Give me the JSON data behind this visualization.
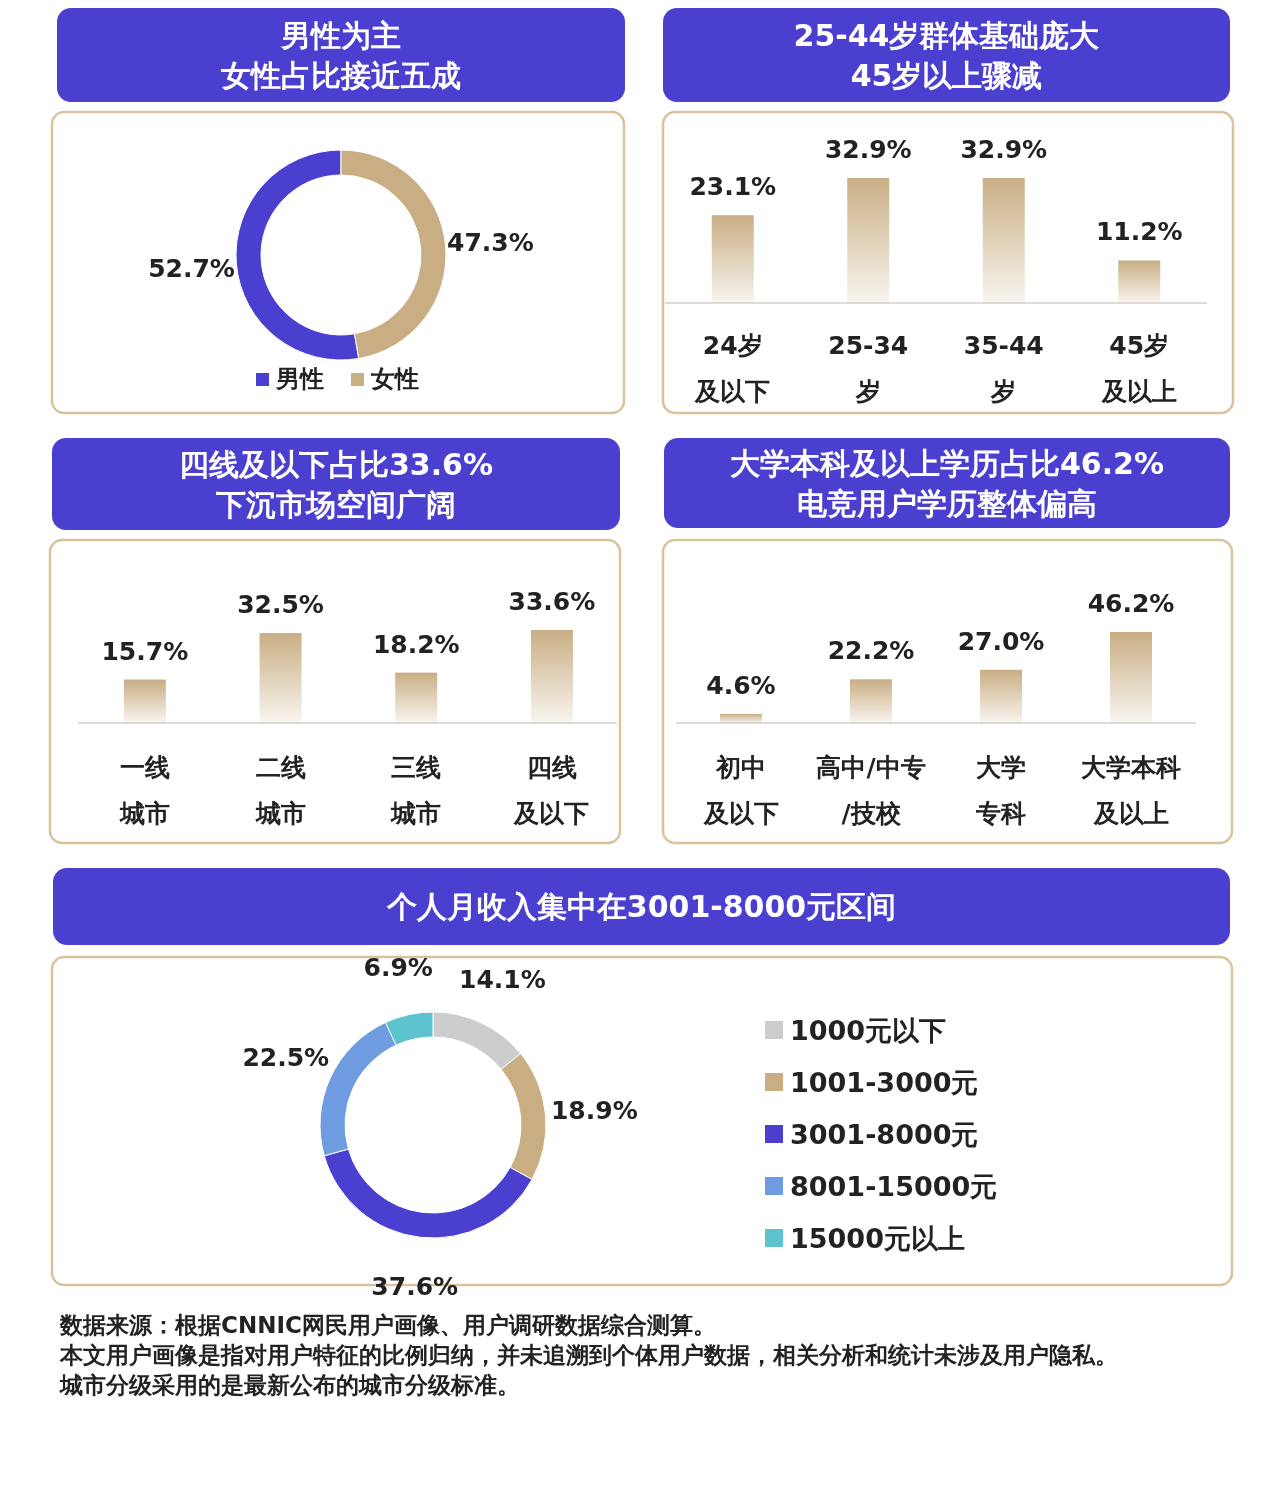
{
  "chart_data": [
    {
      "type": "donut",
      "title": "男性为主",
      "subtitle": "女性占比接近五成",
      "categories": [
        "男性",
        "女性"
      ],
      "values": [
        52.7,
        47.3
      ],
      "colors": [
        "#4b3fd0",
        "#c9ae84"
      ],
      "value_labels": [
        "52.7%",
        "47.3%"
      ],
      "legend": "bottom"
    },
    {
      "type": "bar",
      "title": "25-44岁群体基础庞大",
      "subtitle": "45岁以上骤减",
      "categories": [
        "24岁及以下",
        "25-34岁",
        "35-44岁",
        "45岁及以上"
      ],
      "values": [
        23.1,
        32.9,
        32.9,
        11.2
      ],
      "color": "#c9ae84",
      "value_labels": [
        "23.1%",
        "32.9%",
        "32.9%",
        "11.2%"
      ]
    },
    {
      "type": "bar",
      "title": "四线及以下占比33.6%",
      "subtitle": "下沉市场空间广阔",
      "categories": [
        "一线城市",
        "二线城市",
        "三线城市",
        "四线及以下"
      ],
      "values": [
        15.7,
        32.5,
        18.2,
        33.6
      ],
      "color": "#c9ae84",
      "value_labels": [
        "15.7%",
        "32.5%",
        "18.2%",
        "33.6%"
      ]
    },
    {
      "type": "bar",
      "title": "大学本科及以上学历占比46.2%",
      "subtitle": "电竞用户学历整体偏高",
      "categories": [
        "初中及以下",
        "高中/中专/技校",
        "大学专科",
        "大学本科及以上"
      ],
      "values": [
        4.6,
        22.2,
        27.0,
        46.2
      ],
      "color": "#c9ae84",
      "value_labels": [
        "4.6%",
        "22.2%",
        "27.0%",
        "46.2%"
      ]
    },
    {
      "type": "donut",
      "title": "个人月收入集中在3001-8000元区间",
      "categories": [
        "1000元以下",
        "1001-3000元",
        "3001-8000元",
        "8001-15000元",
        "15000元以上"
      ],
      "values": [
        14.1,
        18.9,
        37.6,
        22.5,
        6.9
      ],
      "colors": [
        "#cccccc",
        "#c9ae84",
        "#4b3fd0",
        "#6f9be0",
        "#5cc3cf"
      ],
      "value_labels": [
        "14.1%",
        "18.9%",
        "37.6%",
        "22.5%",
        "6.9%"
      ],
      "legend": "right",
      "annotations": [
        "数据来源：根据CNNIC网民用户画像、用户调研数据综合测算。",
        "本文用户画像是指对用户特征的比例归纳，并未追溯到个体用户数据，相关分析和统计未涉及用户隐私。",
        "城市分级采用的是最新公布的城市分级标准。"
      ]
    }
  ]
}
